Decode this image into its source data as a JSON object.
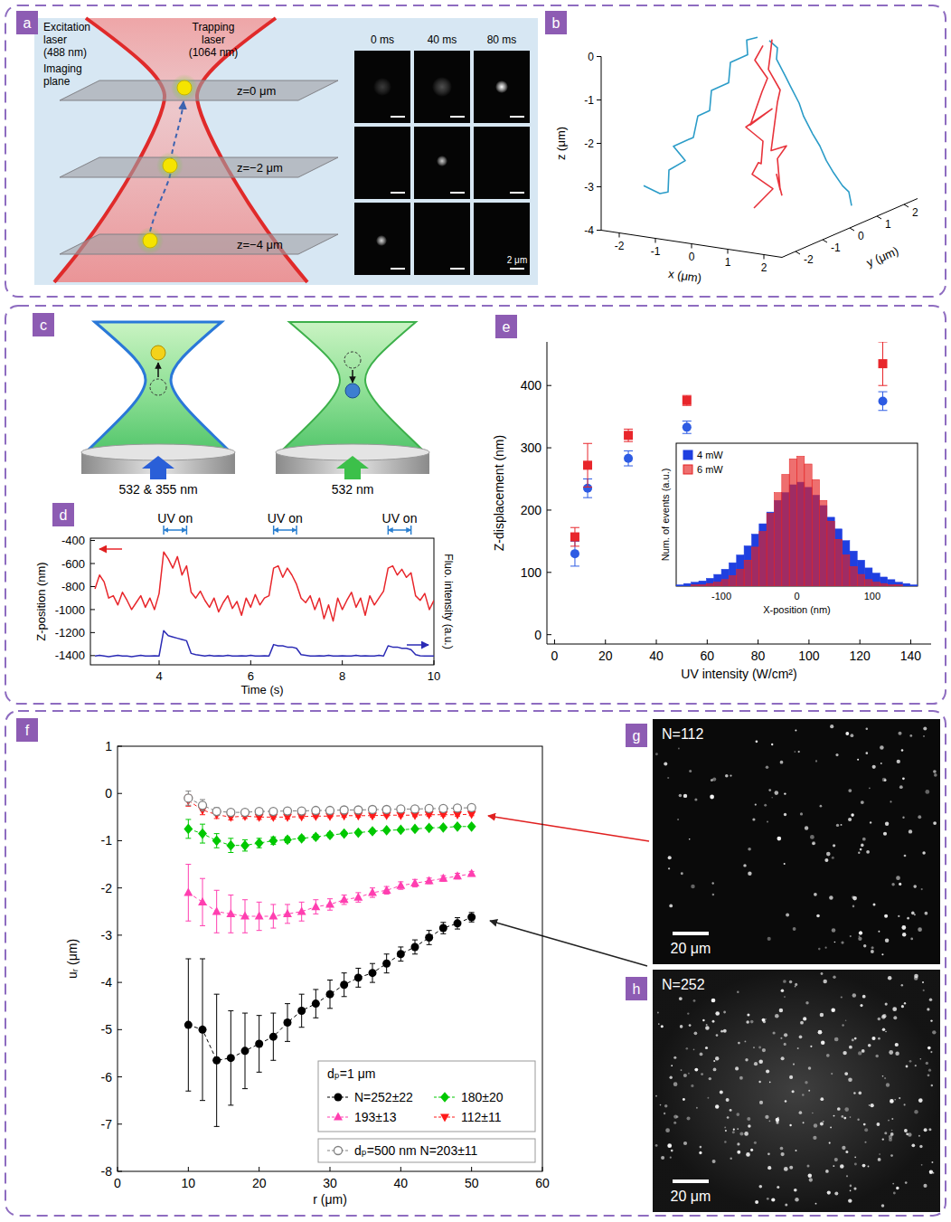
{
  "figure": {
    "panel_labels": [
      "a",
      "b",
      "c",
      "d",
      "e",
      "f",
      "g",
      "h"
    ],
    "a": {
      "excitation_laser": "Excitation laser (488 nm)",
      "trapping_laser": "Trapping laser (1064 nm)",
      "imaging_plane": "Imaging plane",
      "planes": [
        "z=0 μm",
        "z=−2 μm",
        "z=−4 μm"
      ],
      "times": [
        "0 ms",
        "40 ms",
        "80 ms"
      ],
      "scale_bar": "2 μm"
    },
    "c": {
      "beams": [
        "532 & 355 nm",
        "532 nm"
      ]
    },
    "g": {
      "label": "N=112",
      "scale_bar": "20 μm"
    },
    "h": {
      "label": "N=252",
      "scale_bar": "20 μm"
    }
  },
  "chart_data": [
    {
      "type": "line3d",
      "x_label": "x (μm)",
      "y_label": "y (μm)",
      "z_label": "z (μm)",
      "xlim": [
        -2.5,
        2.5
      ],
      "ylim": [
        -2.5,
        2.5
      ],
      "zlim": [
        -4,
        0
      ],
      "xticks": [
        -2,
        -1,
        0,
        1,
        2
      ],
      "yticks": [
        -2,
        -1,
        0,
        1,
        2
      ],
      "zticks": [
        0,
        -1,
        -2,
        -3,
        -4
      ],
      "series": [
        {
          "color": "#2b9cc8",
          "x": [
            -2.3,
            -2.0,
            -1.7,
            -1.9,
            -1.6,
            -1.7,
            -1.3,
            -1.4,
            -1.0,
            -1.1,
            -0.7,
            -0.8,
            -0.4,
            -0.5,
            -0.2
          ],
          "y": [
            -1.2,
            -1.0,
            -1.1,
            -0.8,
            -0.6,
            -0.9,
            -0.7,
            -0.4,
            -0.5,
            -0.3,
            -0.2,
            0.0,
            0.1,
            0.2,
            0.2
          ],
          "z": [
            -3.3,
            -3.5,
            -3.4,
            -3.0,
            -2.8,
            -2.4,
            -2.2,
            -1.8,
            -1.6,
            -1.2,
            -1.0,
            -0.6,
            -0.4,
            -0.1,
            0.0
          ]
        },
        {
          "color": "#2b9cc8",
          "x": [
            2.1,
            1.8,
            2.0,
            1.6,
            1.7,
            1.3,
            1.4,
            1.0,
            1.1,
            0.7,
            0.8,
            0.4,
            0.5,
            0.2
          ],
          "y": [
            0.6,
            0.9,
            0.4,
            0.6,
            0.2,
            0.5,
            0.1,
            0.3,
            0.0,
            0.2,
            -0.1,
            0.1,
            0.0,
            0.1
          ],
          "z": [
            -3.7,
            -3.5,
            -3.2,
            -3.0,
            -2.6,
            -2.4,
            -2.0,
            -1.7,
            -1.3,
            -1.0,
            -0.7,
            -0.4,
            -0.1,
            0.0
          ]
        },
        {
          "color": "#e8333b",
          "x": [
            0.0,
            0.3,
            -0.2,
            0.2,
            -0.1,
            0.1,
            -0.3,
            0.2,
            -0.1,
            0.0,
            0.3,
            -0.2,
            0.1
          ],
          "y": [
            -0.2,
            0.1,
            0.0,
            -0.3,
            0.2,
            0.0,
            -0.1,
            0.2,
            -0.2,
            0.1,
            -0.1,
            0.1,
            0.0
          ],
          "z": [
            -3.8,
            -3.4,
            -3.1,
            -2.7,
            -2.9,
            -2.3,
            -2.0,
            -1.6,
            -1.9,
            -1.2,
            -0.8,
            -0.5,
            -0.1
          ]
        },
        {
          "color": "#e8333b",
          "x": [
            0.4,
            0.1,
            0.5,
            0.2,
            0.6,
            0.1,
            0.4,
            0.2,
            0.5,
            0.1,
            0.3,
            0.2
          ],
          "y": [
            0.3,
            0.5,
            0.1,
            0.4,
            0.2,
            0.3,
            0.0,
            0.4,
            0.1,
            0.2,
            0.0,
            0.2
          ],
          "z": [
            -3.6,
            -3.2,
            -3.4,
            -2.8,
            -2.4,
            -2.6,
            -2.0,
            -1.5,
            -1.1,
            -0.7,
            -0.3,
            0.0
          ]
        }
      ]
    },
    {
      "type": "line",
      "x_label": "Time (s)",
      "y_label": "Z-position (nm)",
      "y2_label": "Fluo. intensity (a.u.)",
      "xlim": [
        2.5,
        10
      ],
      "xticks": [
        4,
        6,
        8,
        10
      ],
      "ylim": [
        -1480,
        -380
      ],
      "yticks": [
        -1400,
        -1200,
        -1000,
        -800,
        -600,
        -400
      ],
      "y2lim": [
        0,
        10
      ],
      "y2ticks": [],
      "x": [
        2.6,
        2.7,
        2.8,
        2.9,
        3.0,
        3.1,
        3.2,
        3.3,
        3.4,
        3.5,
        3.6,
        3.7,
        3.8,
        3.9,
        4.0,
        4.1,
        4.2,
        4.3,
        4.4,
        4.5,
        4.6,
        4.7,
        4.8,
        4.9,
        5.0,
        5.1,
        5.2,
        5.3,
        5.4,
        5.5,
        5.6,
        5.7,
        5.8,
        5.9,
        6.0,
        6.1,
        6.2,
        6.3,
        6.4,
        6.5,
        6.6,
        6.7,
        6.8,
        6.9,
        7.0,
        7.1,
        7.2,
        7.3,
        7.4,
        7.5,
        7.6,
        7.7,
        7.8,
        7.9,
        8.0,
        8.1,
        8.2,
        8.3,
        8.4,
        8.5,
        8.6,
        8.7,
        8.8,
        8.9,
        9.0,
        9.1,
        9.2,
        9.3,
        9.4,
        9.5,
        9.6,
        9.7,
        9.8,
        9.9,
        10.0
      ],
      "series": [
        {
          "color": "#e8262b",
          "values": [
            -820,
            -700,
            -760,
            -900,
            -880,
            -960,
            -850,
            -920,
            -1000,
            -940,
            -880,
            -980,
            -900,
            -1000,
            -860,
            -500,
            -560,
            -640,
            -540,
            -700,
            -620,
            -850,
            -900,
            -840,
            -920,
            -980,
            -900,
            -1020,
            -940,
            -880,
            -990,
            -930,
            -1050,
            -900,
            -980,
            -870,
            -960,
            -900,
            -880,
            -640,
            -620,
            -720,
            -640,
            -700,
            -780,
            -900,
            -940,
            -880,
            -1000,
            -900,
            -1080,
            -960,
            -1100,
            -900,
            -1000,
            -920,
            -850,
            -980,
            -900,
            -1050,
            -880,
            -960,
            -900,
            -840,
            -640,
            -620,
            -700,
            -650,
            -720,
            -680,
            -880,
            -920,
            -860,
            -1000,
            -920
          ]
        },
        {
          "color": "#2b2bb5",
          "axis": "y2",
          "values": [
            0.7,
            0.75,
            0.7,
            0.65,
            0.7,
            0.75,
            0.7,
            0.7,
            0.65,
            0.7,
            0.75,
            0.7,
            0.7,
            0.72,
            0.7,
            2.7,
            2.3,
            2.2,
            2.1,
            2.0,
            1.9,
            0.9,
            0.8,
            0.75,
            0.7,
            0.75,
            0.7,
            0.72,
            0.7,
            0.75,
            0.7,
            0.7,
            0.72,
            0.7,
            0.75,
            0.7,
            0.7,
            0.72,
            0.7,
            1.6,
            1.5,
            1.5,
            1.4,
            1.4,
            1.3,
            0.8,
            0.75,
            0.7,
            0.7,
            0.72,
            0.7,
            0.75,
            0.7,
            0.7,
            0.72,
            0.7,
            0.7,
            0.75,
            0.7,
            0.72,
            0.7,
            0.7,
            0.75,
            0.7,
            1.5,
            1.4,
            1.4,
            1.3,
            1.3,
            1.2,
            0.8,
            0.72,
            0.7,
            0.7,
            0.7
          ]
        }
      ],
      "annotations": [
        {
          "text": "UV on",
          "start": 4.1,
          "end": 4.6
        },
        {
          "text": "UV on",
          "start": 6.5,
          "end": 7.0
        },
        {
          "text": "UV on",
          "start": 9.0,
          "end": 9.5
        }
      ]
    },
    {
      "type": "scatter",
      "x_label": "UV intensity (W/cm²)",
      "y_label": "Z-displacement (nm)",
      "xlim": [
        -3,
        148
      ],
      "xticks": [
        0,
        20,
        40,
        60,
        80,
        100,
        120,
        140
      ],
      "ylim": [
        -15,
        470
      ],
      "yticks": [
        0,
        100,
        200,
        300,
        400
      ],
      "x": [
        8,
        13,
        29,
        52,
        129
      ],
      "series": [
        {
          "color": "#2d5be3",
          "marker": "circle",
          "values": [
            130,
            235,
            283,
            333,
            375
          ],
          "errors": [
            20,
            15,
            12,
            10,
            15
          ]
        },
        {
          "color": "#e8262b",
          "marker": "square",
          "values": [
            157,
            272,
            320,
            376,
            435
          ],
          "errors": [
            15,
            35,
            10,
            8,
            35
          ]
        }
      ]
    },
    {
      "type": "histogram",
      "x_label": "X-position (nm)",
      "y_label": "Num. of events (a.u.)",
      "xlim": [
        -160,
        160
      ],
      "xticks": [
        -100,
        0,
        100
      ],
      "ylim": [
        0,
        110
      ],
      "yticks": [],
      "tick_labels": "x",
      "legend": "upper left",
      "bins": [
        -160,
        -150,
        -140,
        -130,
        -120,
        -110,
        -100,
        -90,
        -80,
        -70,
        -60,
        -50,
        -40,
        -30,
        -20,
        -10,
        0,
        10,
        20,
        30,
        40,
        50,
        60,
        70,
        80,
        90,
        100,
        110,
        120,
        130,
        140,
        150,
        160
      ],
      "series": [
        {
          "name": "4 mW",
          "color": "#1f3fe0",
          "values": [
            1,
            2,
            3,
            4,
            6,
            9,
            13,
            18,
            24,
            31,
            40,
            48,
            57,
            66,
            72,
            78,
            80,
            76,
            70,
            62,
            53,
            44,
            35,
            27,
            20,
            14,
            10,
            7,
            5,
            3,
            2,
            1
          ]
        },
        {
          "name": "6 mW",
          "color": "#e52222",
          "values": [
            0,
            0,
            1,
            1,
            2,
            3,
            5,
            8,
            13,
            20,
            30,
            42,
            56,
            72,
            86,
            98,
            100,
            94,
            82,
            66,
            50,
            36,
            24,
            15,
            9,
            5,
            3,
            2,
            1,
            1,
            0,
            0
          ]
        }
      ]
    },
    {
      "type": "scatter",
      "x_label": "r (μm)",
      "y_label": "uᵣ (μm)",
      "line_style": "dashed",
      "legend": "lower right",
      "legend_title": "dₚ=1 μm",
      "xlim": [
        0,
        60
      ],
      "xticks": [
        0,
        10,
        20,
        30,
        40,
        50,
        60
      ],
      "ylim": [
        -8,
        1
      ],
      "yticks": [
        -8,
        -7,
        -6,
        -5,
        -4,
        -3,
        -2,
        -1,
        0,
        1
      ],
      "x": [
        10,
        12,
        14,
        16,
        18,
        20,
        22,
        24,
        26,
        28,
        30,
        32,
        34,
        36,
        38,
        40,
        42,
        44,
        46,
        48,
        50
      ],
      "series": [
        {
          "name": "N=252±22",
          "color": "#000000",
          "marker": "circle",
          "values": [
            -4.9,
            -5.0,
            -5.65,
            -5.6,
            -5.45,
            -5.3,
            -5.15,
            -4.85,
            -4.6,
            -4.45,
            -4.25,
            -4.05,
            -3.9,
            -3.8,
            -3.6,
            -3.4,
            -3.25,
            -3.05,
            -2.85,
            -2.75,
            -2.62
          ],
          "errors": [
            1.4,
            1.5,
            1.4,
            1.0,
            0.8,
            0.6,
            0.5,
            0.4,
            0.35,
            0.3,
            0.3,
            0.25,
            0.2,
            0.2,
            0.2,
            0.15,
            0.15,
            0.15,
            0.12,
            0.12,
            0.1
          ]
        },
        {
          "name": "193±13",
          "color": "#ff3fb0",
          "marker": "triangle-up",
          "values": [
            -2.1,
            -2.3,
            -2.5,
            -2.55,
            -2.6,
            -2.6,
            -2.6,
            -2.55,
            -2.5,
            -2.4,
            -2.35,
            -2.25,
            -2.2,
            -2.1,
            -2.05,
            -1.95,
            -1.9,
            -1.85,
            -1.8,
            -1.75,
            -1.7
          ],
          "errors": [
            0.6,
            0.5,
            0.45,
            0.4,
            0.35,
            0.3,
            0.25,
            0.2,
            0.2,
            0.15,
            0.12,
            0.1,
            0.1,
            0.1,
            0.08,
            0.08,
            0.08,
            0.06,
            0.06,
            0.06,
            0.05
          ]
        },
        {
          "name": "180±20",
          "color": "#00c800",
          "marker": "diamond",
          "values": [
            -0.75,
            -0.85,
            -1.0,
            -1.1,
            -1.1,
            -1.05,
            -1.0,
            -0.98,
            -0.95,
            -0.92,
            -0.88,
            -0.85,
            -0.83,
            -0.8,
            -0.78,
            -0.77,
            -0.75,
            -0.73,
            -0.72,
            -0.7,
            -0.7
          ],
          "errors": [
            0.2,
            0.2,
            0.15,
            0.15,
            0.12,
            0.1,
            0.08,
            0.06,
            0.05,
            0.05,
            0.05,
            0.04,
            0.04,
            0.04,
            0.03,
            0.03,
            0.03,
            0.03,
            0.03,
            0.03,
            0.03
          ]
        },
        {
          "name": "112±11",
          "color": "#ff1a1a",
          "marker": "triangle-down",
          "values": [
            -0.15,
            -0.35,
            -0.45,
            -0.5,
            -0.48,
            -0.5,
            -0.5,
            -0.5,
            -0.49,
            -0.48,
            -0.48,
            -0.47,
            -0.47,
            -0.47,
            -0.46,
            -0.46,
            -0.46,
            -0.45,
            -0.45,
            -0.45,
            -0.44
          ],
          "errors": [
            0.12,
            0.1,
            0.08,
            0.06,
            0.05,
            0.05,
            0.04,
            0.04,
            0.03,
            0.03,
            0.03,
            0.03,
            0.03,
            0.03,
            0.03,
            0.03,
            0.03,
            0.03,
            0.03,
            0.03,
            0.03
          ]
        },
        {
          "name": "dₚ=500 nm N=203±11",
          "color": "#808080",
          "marker": "open-circle",
          "values": [
            -0.1,
            -0.25,
            -0.38,
            -0.4,
            -0.4,
            -0.38,
            -0.38,
            -0.37,
            -0.37,
            -0.36,
            -0.36,
            -0.35,
            -0.35,
            -0.34,
            -0.34,
            -0.33,
            -0.33,
            -0.32,
            -0.32,
            -0.31,
            -0.3
          ],
          "errors": [
            0.15,
            0.12,
            0.08,
            0.06,
            0.05,
            0.04,
            0.03,
            0.03,
            0.03,
            0.03,
            0.03,
            0.03,
            0.03,
            0.03,
            0.03,
            0.03,
            0.03,
            0.03,
            0.03,
            0.03,
            0.03
          ]
        }
      ]
    }
  ]
}
